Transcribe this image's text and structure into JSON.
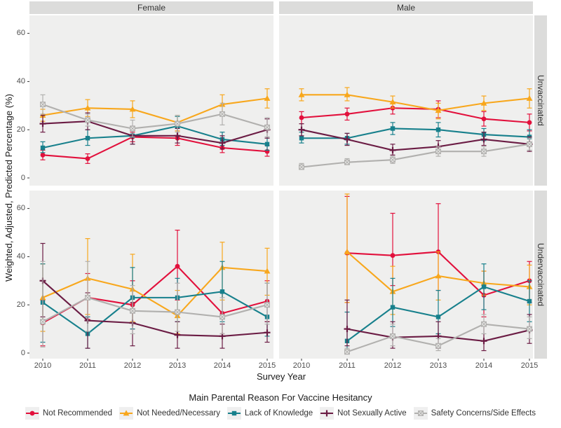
{
  "figure": {
    "y_axis_title": "Weighted, Adjusted, Predicted Percentage (%)",
    "x_axis_title": "Survey Year",
    "legend_title": "Main Parental Reason For Vaccine Hesitancy",
    "facets": {
      "columns": [
        "Female",
        "Male"
      ],
      "rows": [
        "Unvaccinated",
        "Undervaccinated"
      ]
    }
  },
  "colors": {
    "panel_bg": "#efefee",
    "strip_bg": "#dcdcdb",
    "tick_text": "#4d4d4d",
    "tick_mark": "#333333",
    "legend_key_bg": "#efefef",
    "red": "#e2103c",
    "orange": "#f8a71c",
    "teal": "#17808c",
    "maroon": "#6b1c44",
    "gray": "#b1b0ae"
  },
  "chart_data": {
    "type": "line",
    "title": "",
    "xlabel": "Survey Year",
    "ylabel": "Weighted, Adjusted, Predicted Percentage (%)",
    "x": [
      "2010",
      "2011",
      "2012",
      "2013",
      "2014",
      "2015"
    ],
    "y_ticks": [
      0,
      20,
      40,
      60
    ],
    "ylim": [
      -6,
      67
    ],
    "grid": false,
    "legend_position": "bottom",
    "error_bars": true,
    "series": [
      {
        "name": "Not Recommended",
        "color_key": "red",
        "marker": "circle"
      },
      {
        "name": "Not Needed/Necessary",
        "color_key": "orange",
        "marker": "triangle"
      },
      {
        "name": "Lack of Knowledge",
        "color_key": "teal",
        "marker": "square"
      },
      {
        "name": "Not Sexually Active",
        "color_key": "maroon",
        "marker": "plus"
      },
      {
        "name": "Safety Concerns/Side Effects",
        "color_key": "gray",
        "marker": "square-x"
      }
    ],
    "panels": [
      {
        "col": "Female",
        "row": "Unvaccinated",
        "series": [
          {
            "name": "Not Recommended",
            "values": [
              9.5,
              8,
              17,
              16.5,
              12.5,
              11
            ],
            "lo": [
              7.5,
              6,
              15,
              13.5,
              10.5,
              9
            ],
            "hi": [
              11.5,
              10,
              19,
              19.5,
              14.5,
              13.5
            ]
          },
          {
            "name": "Not Needed/Necessary",
            "values": [
              26,
              29,
              28.5,
              23,
              30.5,
              33
            ],
            "lo": [
              23.5,
              25.5,
              25,
              19.5,
              27,
              29
            ],
            "hi": [
              28.5,
              32.5,
              32,
              26,
              34.5,
              37
            ]
          },
          {
            "name": "Lack of Knowledge",
            "values": [
              12.5,
              16.5,
              17.5,
              21.5,
              16,
              14
            ],
            "lo": [
              10.5,
              13.5,
              14,
              17.5,
              13.5,
              11.5
            ],
            "hi": [
              15,
              20,
              21,
              25.5,
              19,
              17
            ]
          },
          {
            "name": "Not Sexually Active",
            "values": [
              22.5,
              23.5,
              17.5,
              17.5,
              14.5,
              20
            ],
            "lo": [
              19,
              20,
              14,
              14.5,
              12,
              16.5
            ],
            "hi": [
              26,
              27,
              21.5,
              20.5,
              17.5,
              24.5
            ]
          },
          {
            "name": "Safety Concerns/Side Effects",
            "values": [
              30.5,
              24,
              20.5,
              22.5,
              26.5,
              21
            ],
            "lo": [
              26.5,
              21.5,
              17,
              19,
              22,
              17
            ],
            "hi": [
              34.5,
              26.5,
              24,
              26,
              31,
              25
            ]
          }
        ]
      },
      {
        "col": "Male",
        "row": "Unvaccinated",
        "series": [
          {
            "name": "Not Recommended",
            "values": [
              25,
              26.5,
              29,
              28.5,
              24.5,
              23
            ],
            "lo": [
              22.5,
              24,
              26.5,
              25,
              21.5,
              19.5
            ],
            "hi": [
              27.5,
              29,
              31.5,
              32,
              27.5,
              26.5
            ]
          },
          {
            "name": "Not Needed/Necessary",
            "values": [
              34.5,
              34.5,
              31.5,
              28,
              31,
              33
            ],
            "lo": [
              32,
              32,
              29,
              24.5,
              28,
              29
            ],
            "hi": [
              37,
              37.5,
              34,
              31,
              34,
              37
            ]
          },
          {
            "name": "Lack of Knowledge",
            "values": [
              16.5,
              16.5,
              20.5,
              20,
              18,
              17
            ],
            "lo": [
              14.5,
              14,
              18,
              17,
              15.5,
              14
            ],
            "hi": [
              19,
              18.5,
              23,
              23,
              20.5,
              20
            ]
          },
          {
            "name": "Not Sexually Active",
            "values": [
              20,
              16,
              11.5,
              13,
              16,
              14
            ],
            "lo": [
              17.5,
              13.5,
              9.5,
              10.5,
              13.5,
              11
            ],
            "hi": [
              22.5,
              18.5,
              14,
              15.5,
              19,
              17
            ]
          },
          {
            "name": "Safety Concerns/Side Effects",
            "values": [
              4.5,
              6.5,
              7.5,
              11,
              11,
              14
            ],
            "lo": [
              3.5,
              5.5,
              6,
              9,
              9,
              11.5
            ],
            "hi": [
              6,
              8,
              9,
              13,
              13,
              16.5
            ]
          }
        ]
      },
      {
        "col": "Female",
        "row": "Undervaccinated",
        "series": [
          {
            "name": "Not Recommended",
            "values": [
              12.5,
              23,
              20,
              36,
              16.5,
              21.5
            ],
            "lo": [
              3,
              14,
              10,
              22,
              8,
              13
            ],
            "hi": [
              22,
              33,
              30,
              51,
              25,
              30
            ]
          },
          {
            "name": "Not Needed/Necessary",
            "values": [
              23,
              31,
              26.5,
              15.5,
              35.5,
              34
            ],
            "lo": [
              9,
              16,
              13,
              8,
              22,
              24
            ],
            "hi": [
              37,
              47.5,
              41,
              26,
              46,
              43.5
            ]
          },
          {
            "name": "Lack of Knowledge",
            "values": [
              21,
              8,
              23,
              23,
              25.5,
              15
            ],
            "lo": [
              4.5,
              2,
              10,
              13,
              13,
              7
            ],
            "hi": [
              37,
              15,
              35.5,
              31,
              38,
              29
            ]
          },
          {
            "name": "Not Sexually Active",
            "values": [
              30,
              13.5,
              12.5,
              7.5,
              7,
              8.5
            ],
            "lo": [
              15,
              2,
              3,
              2,
              2,
              4.5
            ],
            "hi": [
              45.5,
              25,
              21,
              13,
              12,
              13
            ]
          },
          {
            "name": "Safety Concerns/Side Effects",
            "values": [
              13,
              23,
              17.5,
              17,
              15,
              20
            ],
            "lo": [
              2.5,
              9,
              8,
              9,
              8,
              12
            ],
            "hi": [
              38,
              38,
              28,
              29,
              23,
              29
            ]
          }
        ]
      },
      {
        "col": "Male",
        "row": "Undervaccinated",
        "series": [
          {
            "name": "Not Recommended",
            "values": [
              null,
              41.5,
              40.5,
              42,
              24,
              30
            ],
            "lo": [
              null,
              21,
              28,
              26,
              15,
              21
            ],
            "hi": [
              null,
              65,
              58,
              62,
              34,
              38
            ]
          },
          {
            "name": "Not Needed/Necessary",
            "values": [
              null,
              42,
              25.5,
              32,
              29,
              27.5
            ],
            "lo": [
              null,
              21,
              16,
              22,
              24,
              20
            ],
            "hi": [
              null,
              66,
              36,
              42,
              34,
              36.5
            ]
          },
          {
            "name": "Lack of Knowledge",
            "values": [
              null,
              5,
              19,
              15,
              27.5,
              21.5
            ],
            "lo": [
              null,
              1,
              11,
              8,
              18,
              13
            ],
            "hi": [
              null,
              17,
              31,
              26,
              37,
              30
            ]
          },
          {
            "name": "Not Sexually Active",
            "values": [
              null,
              10,
              6.5,
              7,
              5,
              9.5
            ],
            "lo": [
              null,
              3,
              2,
              2,
              1,
              4
            ],
            "hi": [
              null,
              22,
              13,
              13,
              12,
              16
            ]
          },
          {
            "name": "Safety Concerns/Side Effects",
            "values": [
              null,
              0.5,
              7,
              3,
              12,
              10
            ],
            "lo": [
              null,
              0,
              3,
              1,
              8,
              6
            ],
            "hi": [
              null,
              2,
              12,
              6,
              16,
              15
            ]
          }
        ]
      }
    ]
  }
}
